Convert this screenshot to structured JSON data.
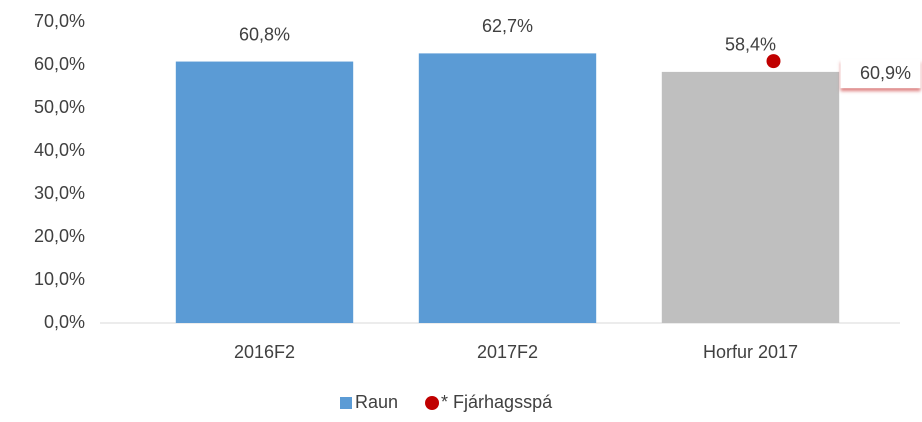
{
  "chart_data": {
    "type": "bar",
    "categories": [
      "2016F2",
      "2017F2",
      "Horfur 2017"
    ],
    "series": [
      {
        "name": "Raun",
        "color": "#5b9bd5",
        "colors": [
          "#5b9bd5",
          "#5b9bd5",
          "#bfbfbf"
        ],
        "values": [
          60.8,
          62.7,
          58.4
        ],
        "value_labels": [
          "60,8%",
          "62,7%",
          "58,4%"
        ]
      },
      {
        "name": "* Fjárhagsspá",
        "type": "marker",
        "color": "#c00000",
        "values": [
          null,
          null,
          60.9
        ],
        "value_labels": [
          null,
          null,
          "60,9%"
        ]
      }
    ],
    "ylim": [
      0,
      70
    ],
    "yticks": [
      {
        "value": 0,
        "label": "0,0%"
      },
      {
        "value": 10,
        "label": "10,0%"
      },
      {
        "value": 20,
        "label": "20,0%"
      },
      {
        "value": 30,
        "label": "30,0%"
      },
      {
        "value": 40,
        "label": "40,0%"
      },
      {
        "value": 50,
        "label": "50,0%"
      },
      {
        "value": 60,
        "label": "60,0%"
      },
      {
        "value": 70,
        "label": "70,0%"
      }
    ],
    "grid": false,
    "legend": "bottom"
  }
}
